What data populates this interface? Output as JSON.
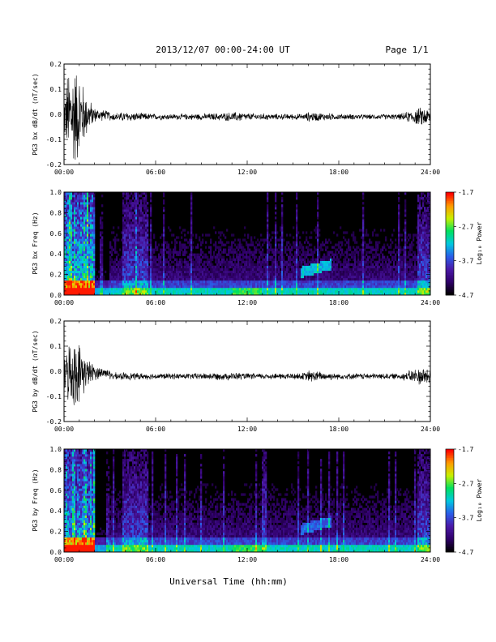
{
  "header": {
    "date_range": "2013/12/07  00:00-24:00 UT",
    "page": "Page 1/1"
  },
  "footer": {
    "xlabel": "Universal Time (hh:mm)"
  },
  "colors": {
    "trace": "#000000",
    "colormap": [
      "#000000",
      "#30006a",
      "#4b1aa8",
      "#2a5de8",
      "#00c8e0",
      "#00e060",
      "#c8f000",
      "#ff9a00",
      "#ff0000"
    ]
  },
  "chart_data": [
    {
      "type": "line",
      "ylabel": "PG3 bx dB/dt (nT/sec)",
      "xlim_hours": [
        0,
        24
      ],
      "ylim": [
        -0.2,
        0.2
      ],
      "yticks": [
        "0.2",
        "0.1",
        "0.0",
        "-0.1",
        "-0.2"
      ],
      "xticks": [
        "00:00",
        "06:00",
        "12:00",
        "18:00",
        "24:00"
      ],
      "envelope": {
        "hours": [
          0,
          0.3,
          0.6,
          1.0,
          1.5,
          2.0,
          3.0,
          4.0,
          6.0,
          8.0,
          10.0,
          11.5,
          12.0,
          14.0,
          15.8,
          16.0,
          18.0,
          20.0,
          22.0,
          23.5,
          24.0
        ],
        "amplitude": [
          0.08,
          0.2,
          0.22,
          0.18,
          0.08,
          0.03,
          0.015,
          0.02,
          0.012,
          0.012,
          0.015,
          0.02,
          0.015,
          0.012,
          0.012,
          0.02,
          0.012,
          0.01,
          0.012,
          0.04,
          0.03
        ]
      },
      "offset": -0.01
    },
    {
      "type": "heatmap",
      "ylabel": "PG3 bx Freq (Hz)",
      "xlim_hours": [
        0,
        24
      ],
      "ylim": [
        0,
        1.0
      ],
      "yticks": [
        "1.0",
        "0.8",
        "0.6",
        "0.4",
        "0.2",
        "0.0"
      ],
      "xticks": [
        "00:00",
        "06:00",
        "12:00",
        "18:00",
        "24:00"
      ],
      "colorbar": {
        "label": "Log₁₀ Power",
        "ticks": [
          "-1.7",
          "-2.7",
          "-3.7",
          "-4.7"
        ],
        "range": [
          -4.7,
          -1.7
        ]
      }
    },
    {
      "type": "line",
      "ylabel": "PG3 by dB/dt (nT/sec)",
      "xlim_hours": [
        0,
        24
      ],
      "ylim": [
        -0.2,
        0.2
      ],
      "yticks": [
        "0.2",
        "0.1",
        "0.0",
        "-0.1",
        "-0.2"
      ],
      "xticks": [
        "00:00",
        "06:00",
        "12:00",
        "18:00",
        "24:00"
      ],
      "envelope": {
        "hours": [
          0,
          0.3,
          0.6,
          1.0,
          1.5,
          2.0,
          3.0,
          4.0,
          6.0,
          8.0,
          10.0,
          11.5,
          12.0,
          14.0,
          15.8,
          16.0,
          18.0,
          20.0,
          22.0,
          23.5,
          24.0
        ],
        "amplitude": [
          0.06,
          0.12,
          0.14,
          0.12,
          0.06,
          0.03,
          0.015,
          0.015,
          0.012,
          0.012,
          0.015,
          0.015,
          0.012,
          0.012,
          0.015,
          0.025,
          0.012,
          0.012,
          0.012,
          0.04,
          0.03
        ]
      },
      "offset": -0.02
    },
    {
      "type": "heatmap",
      "ylabel": "PG3 by Freq (Hz)",
      "xlim_hours": [
        0,
        24
      ],
      "ylim": [
        0,
        1.0
      ],
      "yticks": [
        "1.0",
        "0.8",
        "0.6",
        "0.4",
        "0.2",
        "0.0"
      ],
      "xticks": [
        "00:00",
        "06:00",
        "12:00",
        "18:00",
        "24:00"
      ],
      "colorbar": {
        "label": "Log₁₀ Power",
        "ticks": [
          "-1.7",
          "-2.7",
          "-3.7",
          "-4.7"
        ],
        "range": [
          -4.7,
          -1.7
        ]
      }
    }
  ]
}
